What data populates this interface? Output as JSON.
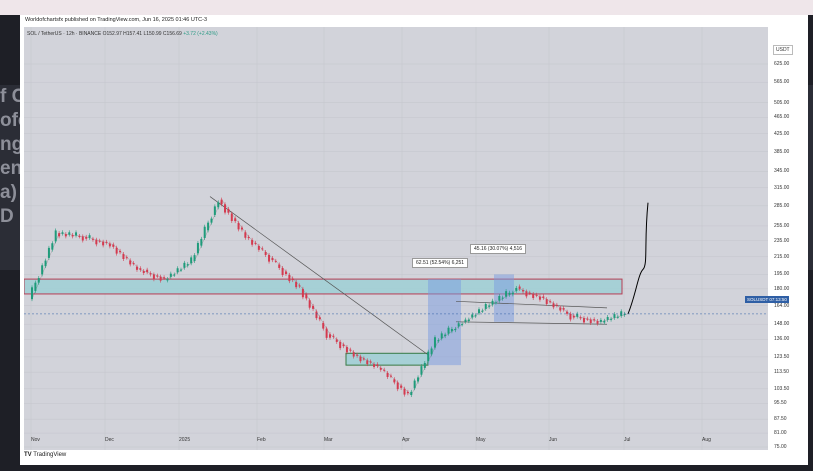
{
  "background": {
    "text_lines": [
      "f C",
      "ofe",
      "ng",
      "ent",
      "a)",
      "D"
    ]
  },
  "header": {
    "published_by": "Worldofchartsfx published on TradingView.com, Jun 16, 2025 01:46 UTC-3",
    "symbol_line": "SOL / TetherUS · 12h · BINANCE",
    "ohlc": "O152.97 H157.41 L150.99 C156.69",
    "change": "+3.72 (+2.43%)"
  },
  "footer": {
    "brand": "TradingView"
  },
  "chart_data": {
    "type": "line",
    "title": "SOL / TetherUS · 12h · BINANCE",
    "scale": "log",
    "currency": "USDT",
    "y_ticks": [
      "625.00",
      "565.00",
      "505.00",
      "465.00",
      "425.00",
      "385.00",
      "345.00",
      "315.00",
      "285.00",
      "255.00",
      "235.00",
      "215.00",
      "195.00",
      "180.00",
      "164.00",
      "148.00",
      "136.00",
      "123.50",
      "113.50",
      "103.50",
      "95.50",
      "87.50",
      "81.00",
      "75.00"
    ],
    "x_ticks": [
      "Nov",
      "Dec",
      "2025",
      "Feb",
      "Mar",
      "Apr",
      "May",
      "Jun",
      "Jul",
      "Aug"
    ],
    "last_price": "SOLUSDT 07:13:50",
    "annotations": [
      "62.51 (52.54%) 6,251",
      "45.16 (30.07%) 4,516"
    ],
    "price_path": [
      [
        "Nov",
        170
      ],
      [
        "mid-Nov",
        245
      ],
      [
        "late-Nov",
        240
      ],
      [
        "Dec",
        230
      ],
      [
        "mid-Dec",
        200
      ],
      [
        "late-Dec",
        190
      ],
      [
        "2025",
        210
      ],
      [
        "mid-Jan",
        295
      ],
      [
        "late-Jan",
        240
      ],
      [
        "Feb",
        210
      ],
      [
        "mid-Feb",
        180
      ],
      [
        "Mar",
        140
      ],
      [
        "mid-Mar",
        125
      ],
      [
        "Apr",
        115
      ],
      [
        "early-Apr",
        100
      ],
      [
        "mid-Apr",
        135
      ],
      [
        "late-Apr",
        150
      ],
      [
        "May",
        165
      ],
      [
        "mid-May",
        180
      ],
      [
        "late-May",
        170
      ],
      [
        "Jun",
        155
      ],
      [
        "mid-Jun",
        150
      ],
      [
        "Jun 16",
        156.69
      ]
    ],
    "projection": [
      [
        "Jun 16",
        156.69
      ],
      [
        "late-Jun",
        195
      ],
      [
        "early-Jul",
        290
      ]
    ],
    "resistance_zone": [
      175,
      190
    ],
    "support_zone": [
      118,
      126
    ],
    "grid": true
  }
}
